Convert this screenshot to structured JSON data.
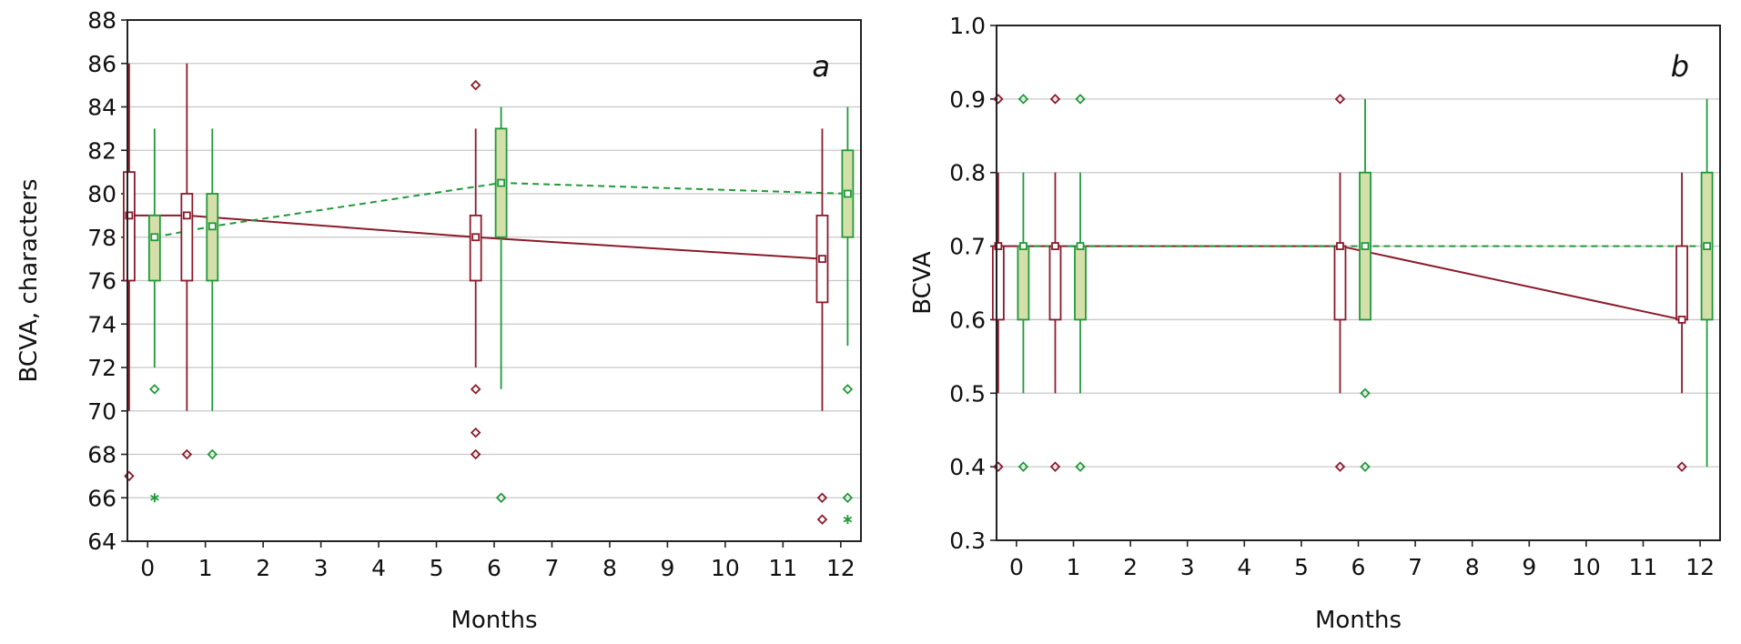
{
  "colors": {
    "red": "#8b1a2b",
    "green": "#1f9a3a",
    "green_fill": "#d5dfa9",
    "grid": "#c8c8c8"
  },
  "chart_data": [
    {
      "type": "box",
      "panel_label": "a",
      "xlabel": "Months",
      "ylabel": "BCVA, characters",
      "xlim": [
        -0.35,
        12.35
      ],
      "ylim": [
        64,
        88
      ],
      "xticks": [
        0,
        1,
        2,
        3,
        4,
        5,
        6,
        7,
        8,
        9,
        10,
        11,
        12
      ],
      "yticks": [
        64,
        66,
        68,
        70,
        72,
        74,
        76,
        78,
        80,
        82,
        84,
        86,
        88
      ],
      "grid": true,
      "series": [
        {
          "color_key": "red",
          "line_style": "solid",
          "offset": -0.32,
          "boxes": [
            {
              "x": 0,
              "median": 79,
              "q1": 76,
              "q3": 81,
              "whisker_low": 70,
              "whisker_high": 86,
              "outliers": [
                67
              ],
              "extremes": []
            },
            {
              "x": 1,
              "median": 79,
              "q1": 76,
              "q3": 80,
              "whisker_low": 70,
              "whisker_high": 86,
              "outliers": [
                68
              ],
              "extremes": []
            },
            {
              "x": 6,
              "median": 78,
              "q1": 76,
              "q3": 79,
              "whisker_low": 72,
              "whisker_high": 83,
              "outliers": [
                85,
                71,
                69,
                68
              ],
              "extremes": []
            },
            {
              "x": 12,
              "median": 77,
              "q1": 75,
              "q3": 79,
              "whisker_low": 70,
              "whisker_high": 83,
              "outliers": [
                66,
                65
              ],
              "extremes": []
            }
          ]
        },
        {
          "color_key": "green",
          "line_style": "dashed",
          "offset": 0.12,
          "boxes": [
            {
              "x": 0,
              "median": 78,
              "q1": 76,
              "q3": 79,
              "whisker_low": 72,
              "whisker_high": 83,
              "outliers": [
                71
              ],
              "extremes": [
                66
              ]
            },
            {
              "x": 1,
              "median": 78.5,
              "q1": 76,
              "q3": 80,
              "whisker_low": 70,
              "whisker_high": 83,
              "outliers": [
                68
              ],
              "extremes": []
            },
            {
              "x": 6,
              "median": 80.5,
              "q1": 78,
              "q3": 83,
              "whisker_low": 71,
              "whisker_high": 84,
              "outliers": [
                66
              ],
              "extremes": []
            },
            {
              "x": 12,
              "median": 80,
              "q1": 78,
              "q3": 82,
              "whisker_low": 73,
              "whisker_high": 84,
              "outliers": [
                71,
                66
              ],
              "extremes": [
                65
              ]
            }
          ]
        }
      ]
    },
    {
      "type": "box",
      "panel_label": "b",
      "xlabel": "Months",
      "ylabel": "BCVA",
      "xlim": [
        -0.35,
        12.35
      ],
      "ylim": [
        0.3,
        1.0
      ],
      "xticks": [
        0,
        1,
        2,
        3,
        4,
        5,
        6,
        7,
        8,
        9,
        10,
        11,
        12
      ],
      "yticks": [
        0.3,
        0.4,
        0.5,
        0.6,
        0.7,
        0.8,
        0.9,
        1.0
      ],
      "ytick_labels": [
        "0.3",
        "0.4",
        "0.5",
        "0.6",
        "0.7",
        "0.8",
        "0.9",
        "1.0"
      ],
      "grid": true,
      "series": [
        {
          "color_key": "red",
          "line_style": "solid",
          "offset": -0.32,
          "boxes": [
            {
              "x": 0,
              "median": 0.7,
              "q1": 0.6,
              "q3": 0.7,
              "whisker_low": 0.5,
              "whisker_high": 0.8,
              "outliers": [
                0.9,
                0.4
              ],
              "extremes": []
            },
            {
              "x": 1,
              "median": 0.7,
              "q1": 0.6,
              "q3": 0.7,
              "whisker_low": 0.5,
              "whisker_high": 0.8,
              "outliers": [
                0.9,
                0.4
              ],
              "extremes": []
            },
            {
              "x": 6,
              "median": 0.7,
              "q1": 0.6,
              "q3": 0.7,
              "whisker_low": 0.5,
              "whisker_high": 0.8,
              "outliers": [
                0.9,
                0.4
              ],
              "extremes": []
            },
            {
              "x": 12,
              "median": 0.6,
              "q1": 0.6,
              "q3": 0.7,
              "whisker_low": 0.5,
              "whisker_high": 0.8,
              "outliers": [
                0.4
              ],
              "extremes": []
            }
          ]
        },
        {
          "color_key": "green",
          "line_style": "dashed",
          "offset": 0.12,
          "boxes": [
            {
              "x": 0,
              "median": 0.7,
              "q1": 0.6,
              "q3": 0.7,
              "whisker_low": 0.5,
              "whisker_high": 0.8,
              "outliers": [
                0.9,
                0.4
              ],
              "extremes": []
            },
            {
              "x": 1,
              "median": 0.7,
              "q1": 0.6,
              "q3": 0.7,
              "whisker_low": 0.5,
              "whisker_high": 0.8,
              "outliers": [
                0.9,
                0.4
              ],
              "extremes": []
            },
            {
              "x": 6,
              "median": 0.7,
              "q1": 0.6,
              "q3": 0.8,
              "whisker_low": 0.6,
              "whisker_high": 0.9,
              "outliers": [
                0.5,
                0.4
              ],
              "extremes": []
            },
            {
              "x": 12,
              "median": 0.7,
              "q1": 0.6,
              "q3": 0.8,
              "whisker_low": 0.4,
              "whisker_high": 0.9,
              "outliers": [],
              "extremes": []
            }
          ]
        }
      ]
    }
  ]
}
